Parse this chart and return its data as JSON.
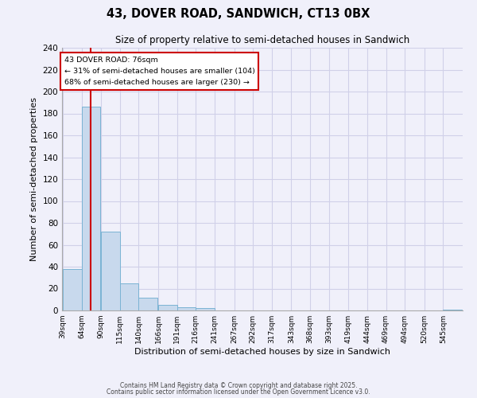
{
  "title": "43, DOVER ROAD, SANDWICH, CT13 0BX",
  "subtitle": "Size of property relative to semi-detached houses in Sandwich",
  "xlabel": "Distribution of semi-detached houses by size in Sandwich",
  "ylabel": "Number of semi-detached properties",
  "bin_labels": [
    "39sqm",
    "64sqm",
    "90sqm",
    "115sqm",
    "140sqm",
    "166sqm",
    "191sqm",
    "216sqm",
    "241sqm",
    "267sqm",
    "292sqm",
    "317sqm",
    "343sqm",
    "368sqm",
    "393sqm",
    "419sqm",
    "444sqm",
    "469sqm",
    "494sqm",
    "520sqm",
    "545sqm"
  ],
  "bin_edges": [
    39,
    64,
    90,
    115,
    140,
    166,
    191,
    216,
    241,
    267,
    292,
    317,
    343,
    368,
    393,
    419,
    444,
    469,
    494,
    520,
    545
  ],
  "bar_values": [
    38,
    186,
    72,
    25,
    12,
    5,
    3,
    2,
    0,
    0,
    0,
    0,
    0,
    0,
    0,
    0,
    0,
    0,
    0,
    0,
    1
  ],
  "bar_color": "#c8d9ed",
  "bar_edgecolor": "#7ab3d4",
  "property_size": 76,
  "redline_color": "#cc0000",
  "annotation_title": "43 DOVER ROAD: 76sqm",
  "annotation_line1": "← 31% of semi-detached houses are smaller (104)",
  "annotation_line2": "68% of semi-detached houses are larger (230) →",
  "annotation_box_facecolor": "#ffffff",
  "annotation_box_edgecolor": "#cc0000",
  "ylim": [
    0,
    240
  ],
  "yticks": [
    0,
    20,
    40,
    60,
    80,
    100,
    120,
    140,
    160,
    180,
    200,
    220,
    240
  ],
  "background_color": "#f0f0fa",
  "grid_color": "#d0d0e8",
  "footer1": "Contains HM Land Registry data © Crown copyright and database right 2025.",
  "footer2": "Contains public sector information licensed under the Open Government Licence v3.0."
}
